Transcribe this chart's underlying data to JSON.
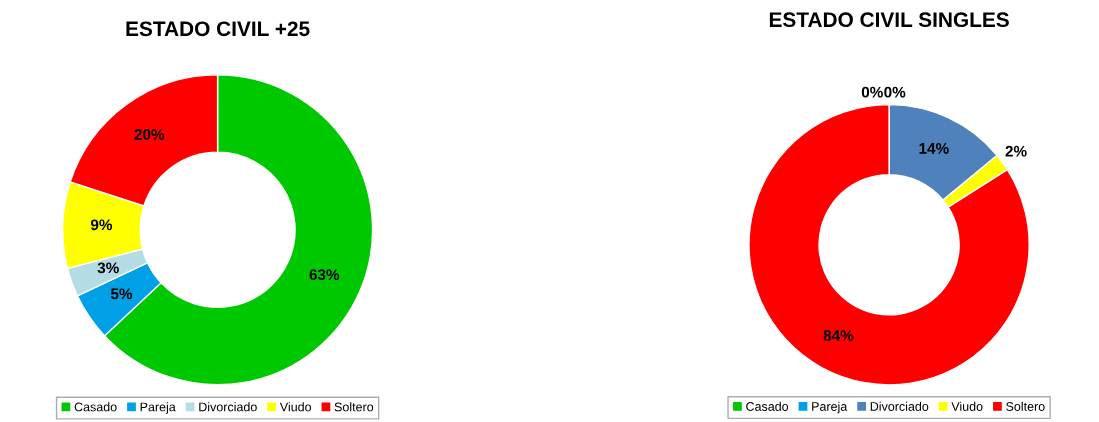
{
  "chart_data": [
    {
      "type": "donut",
      "title": "ESTADO CIVIL +25",
      "categories": [
        "Casado",
        "Pareja",
        "Divorciado",
        "Viudo",
        "Soltero"
      ],
      "values": [
        63,
        5,
        3,
        9,
        20
      ],
      "colors": [
        "#00c800",
        "#00a0e6",
        "#b4dce4",
        "#ffff00",
        "#ff0000"
      ],
      "value_labels": [
        "63%",
        "5%",
        "3%",
        "9%",
        "20%"
      ],
      "legend": "bottom"
    },
    {
      "type": "donut",
      "title": "ESTADO CIVIL SINGLES",
      "categories": [
        "Casado",
        "Pareja",
        "Divorciado",
        "Viudo",
        "Soltero"
      ],
      "values": [
        0,
        0,
        14,
        2,
        84
      ],
      "colors": [
        "#00c800",
        "#00a0e6",
        "#4f81bd",
        "#ffff00",
        "#ff0000"
      ],
      "value_labels": [
        "0%",
        "0%",
        "14%",
        "2%",
        "84%"
      ],
      "legend": "bottom"
    }
  ]
}
